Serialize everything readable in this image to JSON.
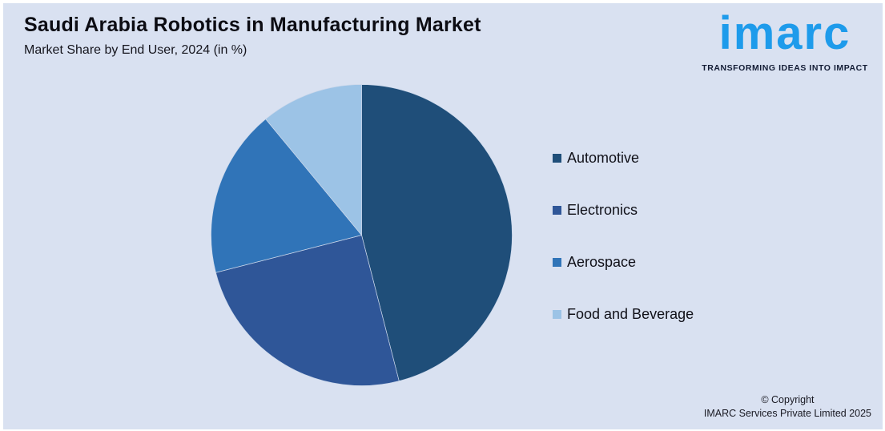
{
  "header": {
    "title": "Saudi Arabia Robotics in Manufacturing Market",
    "subtitle": "Market Share by End User, 2024 (in %)"
  },
  "logo": {
    "wordmark": "imarc",
    "tagline": "TRANSFORMING IDEAS INTO IMPACT",
    "wordmark_color": "#1e9beb",
    "tagline_color": "#131c35"
  },
  "chart_data": {
    "type": "pie",
    "title": "Saudi Arabia Robotics in Manufacturing Market",
    "subtitle": "Market Share by End User, 2024 (in %)",
    "unit": "%",
    "legend_position": "right",
    "data_labels_visible": false,
    "series": [
      {
        "name": "Automotive",
        "value": 46,
        "color": "#1F4E79"
      },
      {
        "name": "Electronics",
        "value": 25,
        "color": "#2F5698"
      },
      {
        "name": "Aerospace",
        "value": 18,
        "color": "#3074B8"
      },
      {
        "name": "Food and Beverage",
        "value": 11,
        "color": "#9CC3E6"
      }
    ]
  },
  "footer": {
    "copyright_line1": "© Copyright",
    "copyright_line2": "IMARC Services Private Limited 2025"
  },
  "colors": {
    "background": "#d9e1f1",
    "page_border": "#ffffff"
  }
}
